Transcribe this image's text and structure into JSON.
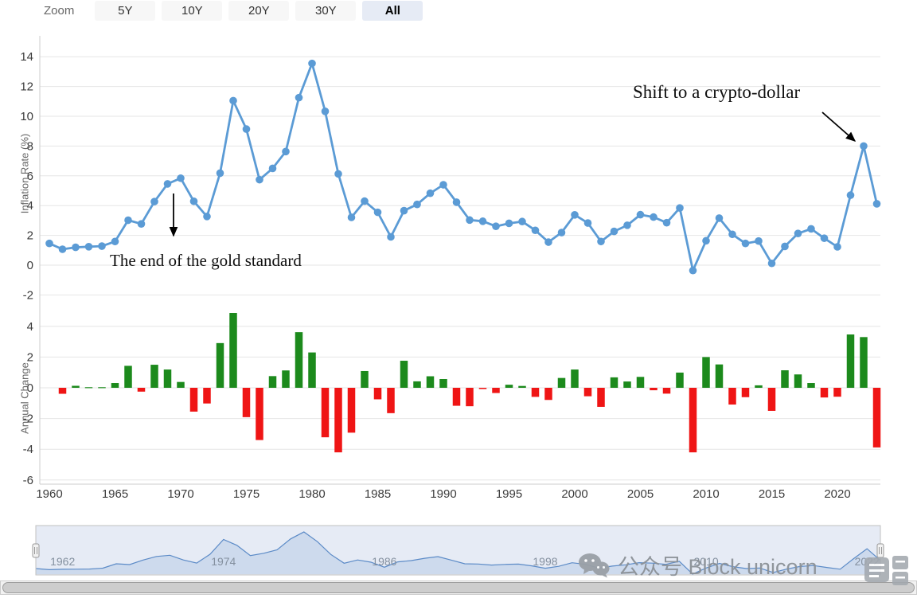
{
  "toolbar": {
    "zoom_label": "Zoom",
    "buttons": [
      {
        "id": "5y",
        "label": "5Y",
        "selected": false
      },
      {
        "id": "10y",
        "label": "10Y",
        "selected": false
      },
      {
        "id": "20y",
        "label": "20Y",
        "selected": false
      },
      {
        "id": "30y",
        "label": "30Y",
        "selected": false
      },
      {
        "id": "all",
        "label": "All",
        "selected": true
      }
    ]
  },
  "axes": {
    "x_ticks": [
      1960,
      1965,
      1970,
      1975,
      1980,
      1985,
      1990,
      1995,
      2000,
      2005,
      2010,
      2015,
      2020
    ]
  },
  "annotations": {
    "gold_standard": "The end of the gold standard",
    "crypto_dollar": "Shift to a crypto-dollar"
  },
  "watermark": {
    "wechat_label": "公众号 Block unicorn"
  },
  "navigator": {
    "tick_labels": [
      1962,
      1974,
      1986,
      1998,
      2010,
      2022
    ]
  },
  "colors": {
    "line": "#5B9BD5",
    "bar_positive": "#1c8a1c",
    "bar_negative": "#ef1515",
    "grid": "#e6e6e6",
    "axis_line": "#cccccc",
    "nav_line": "#5b8dc9",
    "nav_fill": "rgba(125,165,213,0.22)",
    "nav_mask": "rgba(102,133,194,0.16)",
    "selected_button_bg": "#e6ebf5"
  },
  "chart_data": [
    {
      "type": "line",
      "name": "Inflation Rate (%)",
      "ylabel": "Inflation Rate (%)",
      "ylim": [
        -2.5,
        15
      ],
      "yticks": [
        -2,
        0,
        2,
        4,
        6,
        8,
        10,
        12,
        14
      ],
      "x": [
        1960,
        1961,
        1962,
        1963,
        1964,
        1965,
        1966,
        1967,
        1968,
        1969,
        1970,
        1971,
        1972,
        1973,
        1974,
        1975,
        1976,
        1977,
        1978,
        1979,
        1980,
        1981,
        1982,
        1983,
        1984,
        1985,
        1986,
        1987,
        1988,
        1989,
        1990,
        1991,
        1992,
        1993,
        1994,
        1995,
        1996,
        1997,
        1998,
        1999,
        2000,
        2001,
        2002,
        2003,
        2004,
        2005,
        2006,
        2007,
        2008,
        2009,
        2010,
        2011,
        2012,
        2013,
        2014,
        2015,
        2016,
        2017,
        2018,
        2019,
        2020,
        2021,
        2022,
        2023
      ],
      "values": [
        1.46,
        1.07,
        1.2,
        1.24,
        1.28,
        1.59,
        3.02,
        2.77,
        4.27,
        5.46,
        5.84,
        4.29,
        3.27,
        6.18,
        11.05,
        9.14,
        5.74,
        6.5,
        7.63,
        11.25,
        13.55,
        10.33,
        6.13,
        3.21,
        4.3,
        3.55,
        1.9,
        3.66,
        4.08,
        4.83,
        5.4,
        4.23,
        3.03,
        2.95,
        2.61,
        2.81,
        2.93,
        2.34,
        1.55,
        2.19,
        3.38,
        2.83,
        1.59,
        2.27,
        2.68,
        3.39,
        3.23,
        2.85,
        3.84,
        -0.36,
        1.64,
        3.16,
        2.07,
        1.46,
        1.62,
        0.12,
        1.26,
        2.13,
        2.44,
        1.81,
        1.23,
        4.7,
        8.0,
        4.12
      ]
    },
    {
      "type": "bar",
      "name": "Annual Change",
      "ylabel": "Annual Change",
      "ylim": [
        -6.5,
        5
      ],
      "yticks": [
        -6,
        -4,
        -2,
        0,
        2,
        4
      ],
      "x": [
        1961,
        1962,
        1963,
        1964,
        1965,
        1966,
        1967,
        1968,
        1969,
        1970,
        1971,
        1972,
        1973,
        1974,
        1975,
        1976,
        1977,
        1978,
        1979,
        1980,
        1981,
        1982,
        1983,
        1984,
        1985,
        1986,
        1987,
        1988,
        1989,
        1990,
        1991,
        1992,
        1993,
        1994,
        1995,
        1996,
        1997,
        1998,
        1999,
        2000,
        2001,
        2002,
        2003,
        2004,
        2005,
        2006,
        2007,
        2008,
        2009,
        2010,
        2011,
        2012,
        2013,
        2014,
        2015,
        2016,
        2017,
        2018,
        2019,
        2020,
        2021,
        2022,
        2023
      ],
      "values": [
        -0.39,
        0.13,
        0.04,
        0.04,
        0.31,
        1.43,
        -0.25,
        1.5,
        1.19,
        0.38,
        -1.55,
        -1.02,
        2.91,
        4.87,
        -1.91,
        -3.4,
        0.76,
        1.13,
        3.62,
        2.3,
        -3.22,
        -4.2,
        -2.92,
        1.09,
        -0.75,
        -1.65,
        1.76,
        0.42,
        0.75,
        0.57,
        -1.17,
        -1.2,
        -0.08,
        -0.34,
        0.2,
        0.12,
        -0.59,
        -0.79,
        0.64,
        1.19,
        -0.55,
        -1.24,
        0.68,
        0.41,
        0.71,
        -0.16,
        -0.38,
        0.99,
        -4.2,
        2.0,
        1.52,
        -1.09,
        -0.61,
        0.16,
        -1.5,
        1.14,
        0.87,
        0.31,
        -0.63,
        -0.58,
        3.47,
        3.3,
        -3.88
      ]
    }
  ]
}
